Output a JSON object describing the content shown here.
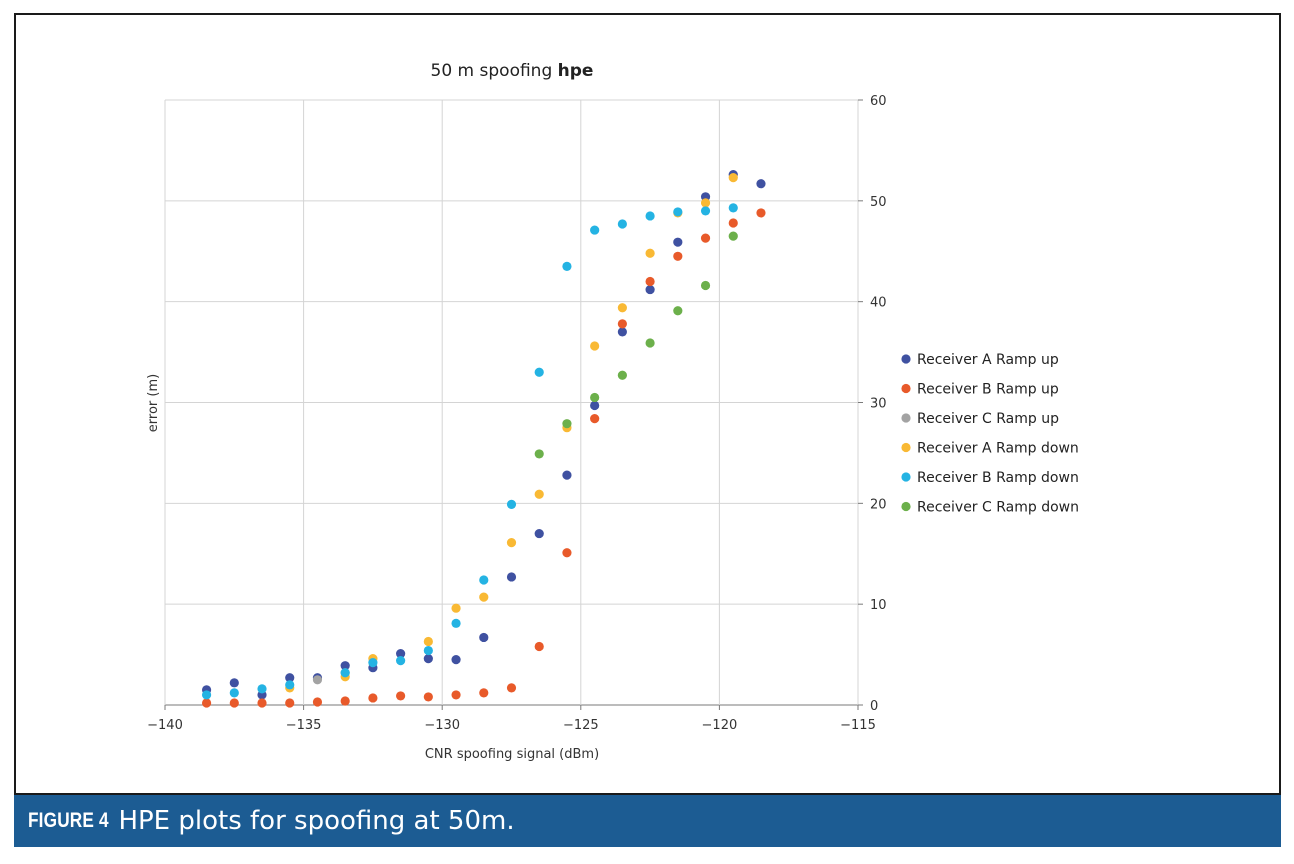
{
  "chart_data": {
    "type": "scatter",
    "title": "50 m spoofing",
    "title_bold": "hpe",
    "xlabel": "CNR spoofing signal (dBm)",
    "ylabel": "error (m)",
    "xlim": [
      -140,
      -115
    ],
    "ylim": [
      0,
      60
    ],
    "x_ticks": [
      -140,
      -135,
      -130,
      -125,
      -120,
      -115
    ],
    "x_tick_labels": [
      "−140",
      "−135",
      "−130",
      "−125",
      "−120",
      "−115"
    ],
    "y_ticks": [
      0,
      10,
      20,
      30,
      40,
      50,
      60
    ],
    "y_tick_labels": [
      "0",
      "10",
      "20",
      "30",
      "40",
      "50",
      "60"
    ],
    "y_axis_side": "right",
    "grid": true,
    "legend_position": "right",
    "series": [
      {
        "name": "Receiver A Ramp up",
        "color": "#3f51a1",
        "points": [
          [
            -138.5,
            1.5
          ],
          [
            -137.5,
            2.2
          ],
          [
            -136.5,
            1.0
          ],
          [
            -135.5,
            2.7
          ],
          [
            -134.5,
            2.7
          ],
          [
            -133.5,
            3.9
          ],
          [
            -132.5,
            3.7
          ],
          [
            -131.5,
            5.1
          ],
          [
            -130.5,
            4.6
          ],
          [
            -129.5,
            4.5
          ],
          [
            -128.5,
            6.7
          ],
          [
            -127.5,
            12.7
          ],
          [
            -126.5,
            17.0
          ],
          [
            -125.5,
            22.8
          ],
          [
            -124.5,
            29.7
          ],
          [
            -123.5,
            37.0
          ],
          [
            -122.5,
            41.2
          ],
          [
            -121.5,
            45.9
          ],
          [
            -120.5,
            50.4
          ],
          [
            -119.5,
            52.6
          ],
          [
            -118.5,
            51.7
          ]
        ]
      },
      {
        "name": "Receiver B Ramp up",
        "color": "#e85a2a",
        "points": [
          [
            -138.5,
            0.2
          ],
          [
            -137.5,
            0.2
          ],
          [
            -136.5,
            0.2
          ],
          [
            -135.5,
            0.2
          ],
          [
            -134.5,
            0.3
          ],
          [
            -133.5,
            0.4
          ],
          [
            -132.5,
            0.7
          ],
          [
            -131.5,
            0.9
          ],
          [
            -130.5,
            0.8
          ],
          [
            -129.5,
            1.0
          ],
          [
            -128.5,
            1.2
          ],
          [
            -127.5,
            1.7
          ],
          [
            -126.5,
            5.8
          ],
          [
            -125.5,
            15.1
          ],
          [
            -124.5,
            28.4
          ],
          [
            -123.5,
            37.8
          ],
          [
            -122.5,
            42.0
          ],
          [
            -121.5,
            44.5
          ],
          [
            -120.5,
            46.3
          ],
          [
            -119.5,
            47.8
          ],
          [
            -118.5,
            48.8
          ]
        ]
      },
      {
        "name": "Receiver C Ramp up",
        "color": "#a3a3a3",
        "points": [
          [
            -134.5,
            2.5
          ],
          [
            -133.5,
            3.2
          ]
        ]
      },
      {
        "name": "Receiver A Ramp down",
        "color": "#f9b934",
        "points": [
          [
            -135.5,
            1.7
          ],
          [
            -133.5,
            2.8
          ],
          [
            -132.5,
            4.6
          ],
          [
            -130.5,
            6.3
          ],
          [
            -129.5,
            9.6
          ],
          [
            -128.5,
            10.7
          ],
          [
            -127.5,
            16.1
          ],
          [
            -126.5,
            20.9
          ],
          [
            -125.5,
            27.5
          ],
          [
            -124.5,
            35.6
          ],
          [
            -123.5,
            39.4
          ],
          [
            -122.5,
            44.8
          ],
          [
            -121.5,
            48.8
          ],
          [
            -120.5,
            49.8
          ],
          [
            -119.5,
            52.3
          ]
        ]
      },
      {
        "name": "Receiver B Ramp down",
        "color": "#24b3e3",
        "points": [
          [
            -138.5,
            1.0
          ],
          [
            -137.5,
            1.2
          ],
          [
            -136.5,
            1.6
          ],
          [
            -135.5,
            2.0
          ],
          [
            -133.5,
            3.2
          ],
          [
            -132.5,
            4.2
          ],
          [
            -131.5,
            4.4
          ],
          [
            -130.5,
            5.4
          ],
          [
            -129.5,
            8.1
          ],
          [
            -128.5,
            12.4
          ],
          [
            -127.5,
            19.9
          ],
          [
            -126.5,
            33.0
          ],
          [
            -125.5,
            43.5
          ],
          [
            -124.5,
            47.1
          ],
          [
            -123.5,
            47.7
          ],
          [
            -122.5,
            48.5
          ],
          [
            -121.5,
            48.9
          ],
          [
            -120.5,
            49.0
          ],
          [
            -119.5,
            49.3
          ]
        ]
      },
      {
        "name": "Receiver C Ramp down",
        "color": "#6cb04b",
        "points": [
          [
            -125.5,
            27.9
          ],
          [
            -124.5,
            30.5
          ],
          [
            -126.5,
            24.9
          ],
          [
            -123.5,
            32.7
          ],
          [
            -122.5,
            35.9
          ],
          [
            -121.5,
            39.1
          ],
          [
            -120.5,
            41.6
          ],
          [
            -119.5,
            46.5
          ]
        ]
      }
    ]
  },
  "caption": {
    "label": "FIGURE 4",
    "text": "HPE plots for spoofing at 50m."
  }
}
